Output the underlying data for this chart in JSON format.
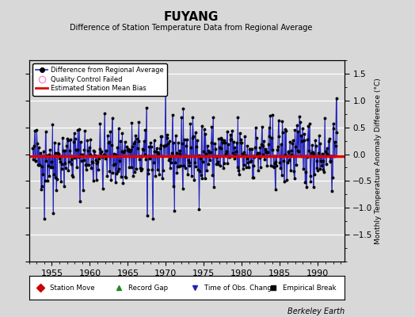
{
  "title": "FUYANG",
  "subtitle": "Difference of Station Temperature Data from Regional Average",
  "ylabel_right": "Monthly Temperature Anomaly Difference (°C)",
  "xlim": [
    1952.0,
    1993.5
  ],
  "ylim": [
    -2.0,
    1.75
  ],
  "yticks": [
    -1.5,
    -1.0,
    -0.5,
    0.0,
    0.5,
    1.0,
    1.5
  ],
  "xticks": [
    1955,
    1960,
    1965,
    1970,
    1975,
    1980,
    1985,
    1990
  ],
  "bias_value": -0.04,
  "bg_color": "#d8d8d8",
  "plot_bg_color": "#d8d8d8",
  "line_color": "#2222bb",
  "marker_color": "#000000",
  "bias_color": "#dd0000",
  "watermark": "Berkeley Earth",
  "seed": 42,
  "start_year": 1952.5,
  "end_year": 1992.5
}
